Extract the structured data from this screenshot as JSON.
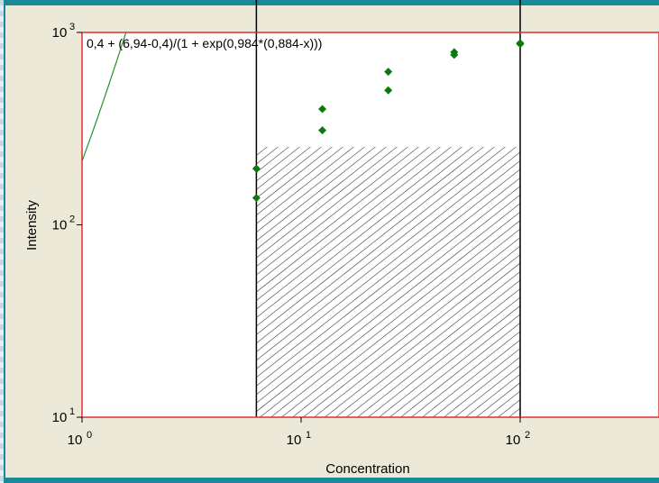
{
  "chart_data": {
    "type": "scatter",
    "title": "",
    "annotation": "0,4 + (6,94-0,4)/(1 + exp(0,984*(0,884-x)))",
    "xlabel": "Concentration",
    "ylabel": "Intensity",
    "xscale": "log",
    "yscale": "log",
    "xlim": [
      1,
      500
    ],
    "ylim": [
      10,
      1000
    ],
    "x_ticks": [
      {
        "base": "10",
        "exp": "0",
        "value": 1
      },
      {
        "base": "10",
        "exp": "1",
        "value": 10
      },
      {
        "base": "10",
        "exp": "2",
        "value": 100
      }
    ],
    "y_ticks": [
      {
        "base": "10",
        "exp": "1",
        "value": 10
      },
      {
        "base": "10",
        "exp": "2",
        "value": 100
      },
      {
        "base": "10",
        "exp": "3",
        "value": 1000
      }
    ],
    "series": [
      {
        "points": [
          {
            "x": 6.25,
            "y": 196
          },
          {
            "x": 6.25,
            "y": 138
          },
          {
            "x": 12.5,
            "y": 400
          },
          {
            "x": 12.5,
            "y": 310
          },
          {
            "x": 25,
            "y": 625
          },
          {
            "x": 25,
            "y": 500
          },
          {
            "x": 50,
            "y": 790
          },
          {
            "x": 50,
            "y": 765
          },
          {
            "x": 100,
            "y": 880
          },
          {
            "x": 100,
            "y": 870
          }
        ]
      }
    ],
    "fit_curve": {
      "a": 0.4,
      "d": 6.94,
      "k": 0.984,
      "c": 0.884,
      "note_form": "log10 scale"
    },
    "shaded_region": {
      "x_from": 6.25,
      "x_to": 100
    },
    "colors": {
      "points": "#0a7a0a",
      "curve": "#2a8f2a",
      "plot_border": "#e03030",
      "frame": "#1a8a98",
      "background": "#ece9d8",
      "plot_background": "#ffffff"
    },
    "grid": false
  }
}
